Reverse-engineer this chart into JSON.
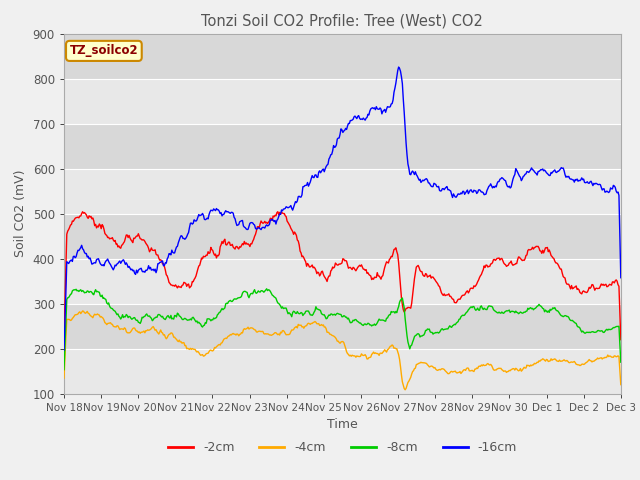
{
  "title": "Tonzi Soil CO2 Profile: Tree (West) CO2",
  "ylabel": "Soil CO2 (mV)",
  "xlabel": "Time",
  "ylim": [
    100,
    900
  ],
  "yticks": [
    100,
    200,
    300,
    400,
    500,
    600,
    700,
    800,
    900
  ],
  "legend_label": "TZ_soilco2",
  "series_labels": [
    "-2cm",
    "-4cm",
    "-8cm",
    "-16cm"
  ],
  "series_colors": [
    "#ff0000",
    "#ffaa00",
    "#00cc00",
    "#0000ff"
  ],
  "background_color": "#f0f0f0",
  "plot_bg_bands": [
    "#e8e8e8",
    "#d8d8d8"
  ],
  "grid_color": "#ffffff",
  "title_color": "#555555",
  "tick_label_color": "#555555",
  "tick_labels": [
    "Nov 18",
    "Nov 19",
    "Nov 20",
    "Nov 21",
    "Nov 22",
    "Nov 23",
    "Nov 24",
    "Nov 25",
    "Nov 26",
    "Nov 27",
    "Nov 28",
    "Nov 29",
    "Nov 30",
    "Dec 1",
    "Dec 2",
    "Dec 3"
  ]
}
